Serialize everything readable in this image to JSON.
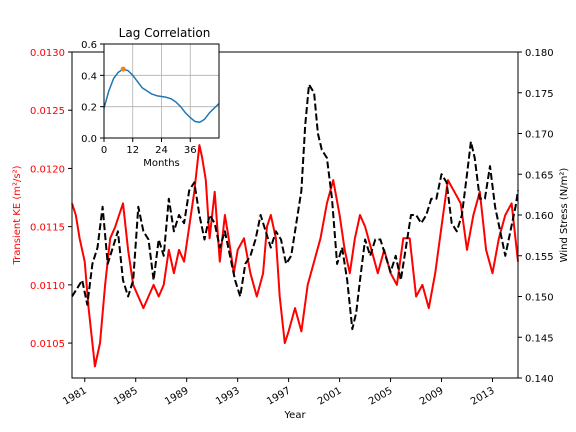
{
  "chart_data": [
    {
      "type": "line",
      "xlabel": "Year",
      "ylabel_left": "Transient KE (m²/s²)",
      "ylabel_right": "Wind Stress (N/m²)",
      "xlim": [
        1980.0,
        2015.0
      ],
      "ylim_left": [
        0.0102,
        0.013
      ],
      "ylim_right": [
        0.14,
        0.18
      ],
      "x_ticks": [
        "1981",
        "1985",
        "1989",
        "1993",
        "1997",
        "2001",
        "2005",
        "2009",
        "2013"
      ],
      "left_ticks": [
        "0.0105",
        "0.0110",
        "0.0115",
        "0.0120",
        "0.0125",
        "0.0130"
      ],
      "right_ticks": [
        "0.140",
        "0.145",
        "0.150",
        "0.155",
        "0.160",
        "0.165",
        "0.170",
        "0.175",
        "0.180"
      ],
      "grid": false,
      "colors": {
        "ke": "#ff0000",
        "wind": "#000000",
        "left_axis_text": "#ff0000"
      },
      "series": [
        {
          "axis": "left",
          "style": "solid",
          "x": [
            1980.0,
            1980.3,
            1980.6,
            1981.0,
            1981.3,
            1981.6,
            1981.8,
            1982.2,
            1982.6,
            1983.0,
            1983.4,
            1983.7,
            1984.0,
            1984.4,
            1984.8,
            1985.2,
            1985.6,
            1986.0,
            1986.4,
            1986.8,
            1987.2,
            1987.6,
            1988.0,
            1988.4,
            1988.8,
            1989.2,
            1989.6,
            1990.0,
            1990.2,
            1990.5,
            1990.8,
            1991.2,
            1991.6,
            1992.0,
            1992.3,
            1992.7,
            1993.0,
            1993.5,
            1994.0,
            1994.5,
            1995.0,
            1995.3,
            1995.6,
            1996.0,
            1996.3,
            1996.7,
            1997.0,
            1997.5,
            1998.0,
            1998.5,
            1999.0,
            1999.5,
            2000.0,
            2000.5,
            2001.0,
            2001.4,
            2001.8,
            2002.2,
            2002.6,
            2003.0,
            2003.5,
            2004.0,
            2004.5,
            2005.0,
            2005.5,
            2006.0,
            2006.5,
            2007.0,
            2007.5,
            2008.0,
            2008.5,
            2009.0,
            2009.5,
            2010.0,
            2010.5,
            2011.0,
            2011.5,
            2012.0,
            2012.5,
            2013.0,
            2013.5,
            2014.0,
            2014.5,
            2015.0
          ],
          "y": [
            0.0117,
            0.0116,
            0.0114,
            0.0112,
            0.0108,
            0.0105,
            0.0103,
            0.0105,
            0.011,
            0.0114,
            0.0115,
            0.0116,
            0.0117,
            0.0113,
            0.011,
            0.0109,
            0.0108,
            0.0109,
            0.011,
            0.0109,
            0.011,
            0.0113,
            0.0111,
            0.0113,
            0.0112,
            0.0115,
            0.0118,
            0.0122,
            0.0121,
            0.0119,
            0.0114,
            0.0118,
            0.0112,
            0.0116,
            0.0114,
            0.0111,
            0.0113,
            0.0114,
            0.0111,
            0.0109,
            0.0111,
            0.0115,
            0.0116,
            0.0114,
            0.0109,
            0.0105,
            0.0106,
            0.0108,
            0.0106,
            0.011,
            0.0112,
            0.0114,
            0.0117,
            0.0119,
            0.0116,
            0.0113,
            0.0111,
            0.0114,
            0.0116,
            0.0115,
            0.0113,
            0.0111,
            0.0113,
            0.0111,
            0.011,
            0.0114,
            0.0114,
            0.0109,
            0.011,
            0.0108,
            0.0111,
            0.0115,
            0.0119,
            0.0118,
            0.0117,
            0.0113,
            0.0116,
            0.0118,
            0.0113,
            0.0111,
            0.0114,
            0.0116,
            0.0117,
            0.0112
          ]
        },
        {
          "axis": "right",
          "style": "dashed",
          "x": [
            1980.0,
            1980.4,
            1980.8,
            1981.2,
            1981.6,
            1982.0,
            1982.4,
            1982.8,
            1983.2,
            1983.6,
            1984.0,
            1984.4,
            1984.8,
            1985.2,
            1985.6,
            1986.0,
            1986.4,
            1986.8,
            1987.2,
            1987.6,
            1988.0,
            1988.4,
            1988.8,
            1989.2,
            1989.6,
            1990.0,
            1990.4,
            1990.8,
            1991.2,
            1991.6,
            1992.0,
            1992.4,
            1992.8,
            1993.2,
            1993.6,
            1994.0,
            1994.4,
            1994.8,
            1995.2,
            1995.6,
            1996.0,
            1996.4,
            1996.8,
            1997.2,
            1997.6,
            1998.0,
            1998.3,
            1998.6,
            1999.0,
            1999.3,
            1999.6,
            2000.0,
            2000.4,
            2000.8,
            2001.2,
            2001.6,
            2002.0,
            2002.3,
            2002.6,
            2003.0,
            2003.4,
            2003.8,
            2004.2,
            2004.6,
            2005.0,
            2005.4,
            2005.8,
            2006.2,
            2006.6,
            2007.0,
            2007.4,
            2007.8,
            2008.2,
            2008.6,
            2009.0,
            2009.4,
            2009.8,
            2010.2,
            2010.6,
            2011.0,
            2011.3,
            2011.6,
            2012.0,
            2012.4,
            2012.8,
            2013.2,
            2013.6,
            2014.0,
            2014.4,
            2014.8,
            2015.0
          ],
          "y": [
            0.15,
            0.151,
            0.152,
            0.149,
            0.154,
            0.156,
            0.161,
            0.154,
            0.156,
            0.158,
            0.152,
            0.15,
            0.152,
            0.161,
            0.158,
            0.157,
            0.152,
            0.157,
            0.155,
            0.162,
            0.158,
            0.16,
            0.159,
            0.163,
            0.164,
            0.16,
            0.157,
            0.16,
            0.159,
            0.156,
            0.158,
            0.155,
            0.152,
            0.15,
            0.154,
            0.155,
            0.157,
            0.16,
            0.158,
            0.156,
            0.158,
            0.157,
            0.154,
            0.155,
            0.159,
            0.163,
            0.171,
            0.176,
            0.175,
            0.17,
            0.168,
            0.167,
            0.162,
            0.154,
            0.156,
            0.152,
            0.146,
            0.148,
            0.152,
            0.157,
            0.155,
            0.157,
            0.157,
            0.155,
            0.153,
            0.155,
            0.152,
            0.156,
            0.16,
            0.16,
            0.159,
            0.16,
            0.162,
            0.162,
            0.165,
            0.164,
            0.159,
            0.158,
            0.16,
            0.165,
            0.169,
            0.167,
            0.162,
            0.162,
            0.166,
            0.161,
            0.158,
            0.155,
            0.158,
            0.161,
            0.163
          ]
        }
      ]
    },
    {
      "type": "line",
      "title": "Lag Correlation",
      "xlabel": "Months",
      "xlim": [
        0,
        48
      ],
      "ylim": [
        0.0,
        0.6
      ],
      "x_ticks": [
        "0",
        "12",
        "24",
        "36"
      ],
      "y_ticks": [
        "0.0",
        "0.2",
        "0.4",
        "0.6"
      ],
      "grid": true,
      "colors": {
        "line": "#1f77b4",
        "marker": "#ff7f0e",
        "grid": "#b0b0b0"
      },
      "x": [
        0,
        2,
        4,
        6,
        8,
        10,
        12,
        14,
        16,
        18,
        20,
        22,
        24,
        26,
        28,
        30,
        32,
        34,
        36,
        38,
        40,
        42,
        44,
        46,
        48
      ],
      "y": [
        0.19,
        0.3,
        0.38,
        0.42,
        0.44,
        0.43,
        0.4,
        0.36,
        0.32,
        0.3,
        0.28,
        0.27,
        0.265,
        0.26,
        0.25,
        0.23,
        0.2,
        0.16,
        0.13,
        0.105,
        0.1,
        0.12,
        0.16,
        0.19,
        0.22
      ],
      "peak_lag": 8,
      "peak_value": 0.44
    }
  ]
}
